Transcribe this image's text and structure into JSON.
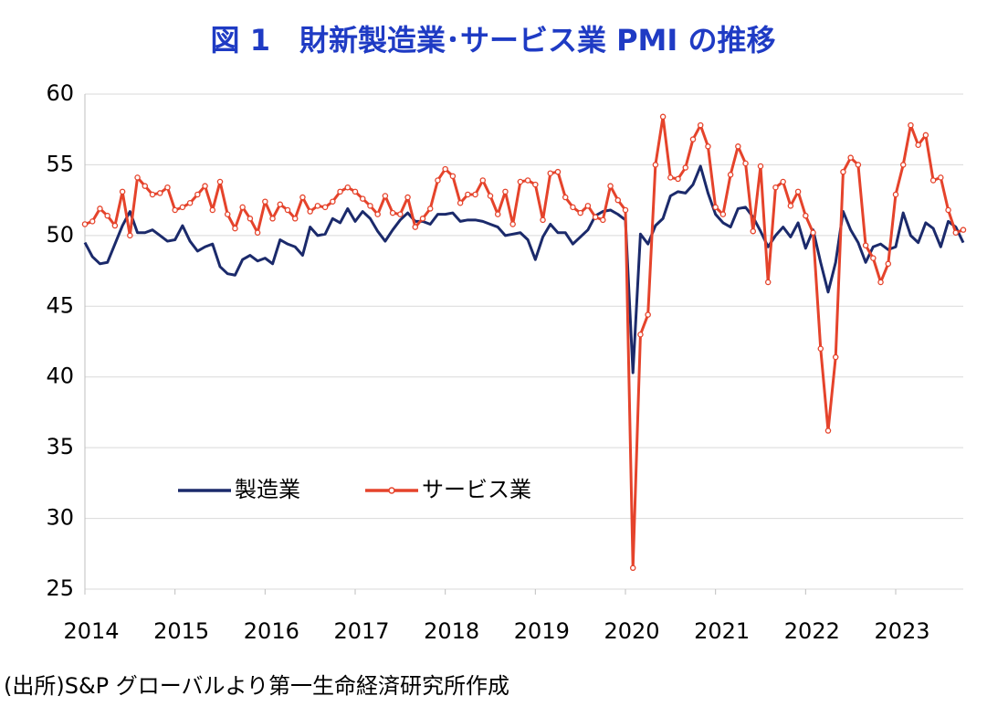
{
  "chart_data": {
    "type": "line",
    "title": "図 1　財新製造業･サービス業 PMI の推移",
    "source": "(出所)S&P グローバルより第一生命経済研究所作成",
    "categories": [
      "2014",
      null,
      null,
      null,
      null,
      null,
      null,
      null,
      null,
      null,
      null,
      null,
      "2015",
      null,
      null,
      null,
      null,
      null,
      null,
      null,
      null,
      null,
      null,
      null,
      "2016",
      null,
      null,
      null,
      null,
      null,
      null,
      null,
      null,
      null,
      null,
      null,
      "2017",
      null,
      null,
      null,
      null,
      null,
      null,
      null,
      null,
      null,
      null,
      null,
      "2018",
      null,
      null,
      null,
      null,
      null,
      null,
      null,
      null,
      null,
      null,
      null,
      "2019",
      null,
      null,
      null,
      null,
      null,
      null,
      null,
      null,
      null,
      null,
      null,
      "2020",
      null,
      null,
      null,
      null,
      null,
      null,
      null,
      null,
      null,
      null,
      null,
      "2021",
      null,
      null,
      null,
      null,
      null,
      null,
      null,
      null,
      null,
      null,
      null,
      "2022",
      null,
      null,
      null,
      null,
      null,
      null,
      null,
      null,
      null,
      null,
      null,
      "2023",
      null,
      null,
      null,
      null,
      null,
      null,
      null,
      null,
      null
    ],
    "series": [
      {
        "name": "製造業",
        "color": "#1b2a6b",
        "marker": false,
        "values": [
          49.5,
          48.5,
          48.0,
          48.1,
          49.4,
          50.7,
          51.7,
          50.2,
          50.2,
          50.4,
          50.0,
          49.6,
          49.7,
          50.7,
          49.6,
          48.9,
          49.2,
          49.4,
          47.8,
          47.3,
          47.2,
          48.3,
          48.6,
          48.2,
          48.4,
          48.0,
          49.7,
          49.4,
          49.2,
          48.6,
          50.6,
          50.0,
          50.1,
          51.2,
          50.9,
          51.9,
          51.0,
          51.7,
          51.2,
          50.3,
          49.6,
          50.4,
          51.1,
          51.6,
          51.0,
          51.0,
          50.8,
          51.5,
          51.5,
          51.6,
          51.0,
          51.1,
          51.1,
          51.0,
          50.8,
          50.6,
          50.0,
          50.1,
          50.2,
          49.7,
          48.3,
          49.9,
          50.8,
          50.2,
          50.2,
          49.4,
          49.9,
          50.4,
          51.4,
          51.7,
          51.8,
          51.5,
          51.1,
          40.3,
          50.1,
          49.4,
          50.7,
          51.2,
          52.8,
          53.1,
          53.0,
          53.6,
          54.9,
          53.0,
          51.5,
          50.9,
          50.6,
          51.9,
          52.0,
          51.3,
          50.3,
          49.2,
          50.0,
          50.6,
          49.9,
          50.9,
          49.1,
          50.4,
          48.1,
          46.0,
          48.1,
          51.7,
          50.4,
          49.5,
          48.1,
          49.2,
          49.4,
          49.0,
          49.2,
          51.6,
          50.0,
          49.5,
          50.9,
          50.5,
          49.2,
          51.0,
          50.6,
          49.5
        ]
      },
      {
        "name": "サービス業",
        "color": "#e5432b",
        "marker": true,
        "values": [
          50.8,
          51.0,
          51.9,
          51.4,
          50.7,
          53.1,
          50.0,
          54.1,
          53.5,
          52.9,
          53.0,
          53.4,
          51.8,
          52.0,
          52.3,
          52.9,
          53.5,
          51.8,
          53.8,
          51.5,
          50.5,
          52.0,
          51.2,
          50.2,
          52.4,
          51.2,
          52.2,
          51.8,
          51.2,
          52.7,
          51.7,
          52.1,
          52.0,
          52.4,
          53.1,
          53.4,
          53.1,
          52.6,
          52.1,
          51.5,
          52.8,
          51.6,
          51.5,
          52.7,
          50.6,
          51.2,
          51.9,
          53.9,
          54.7,
          54.2,
          52.3,
          52.9,
          52.9,
          53.9,
          52.8,
          51.5,
          53.1,
          50.8,
          53.8,
          53.9,
          53.6,
          51.1,
          54.4,
          54.5,
          52.7,
          52.0,
          51.6,
          52.1,
          51.3,
          51.1,
          53.5,
          52.5,
          51.8,
          26.5,
          43.0,
          44.4,
          55.0,
          58.4,
          54.1,
          54.0,
          54.8,
          56.8,
          57.8,
          56.3,
          52.0,
          51.5,
          54.3,
          56.3,
          55.1,
          50.3,
          54.9,
          46.7,
          53.4,
          53.8,
          52.1,
          53.1,
          51.4,
          50.2,
          42.0,
          36.2,
          41.4,
          54.5,
          55.5,
          55.0,
          49.3,
          48.4,
          46.7,
          48.0,
          52.9,
          55.0,
          57.8,
          56.4,
          57.1,
          53.9,
          54.1,
          51.8,
          50.2,
          50.4
        ]
      }
    ],
    "ylim": [
      25,
      60
    ],
    "yticks": [
      25,
      30,
      35,
      40,
      45,
      50,
      55,
      60
    ],
    "grid": true,
    "legend": "lower left"
  }
}
